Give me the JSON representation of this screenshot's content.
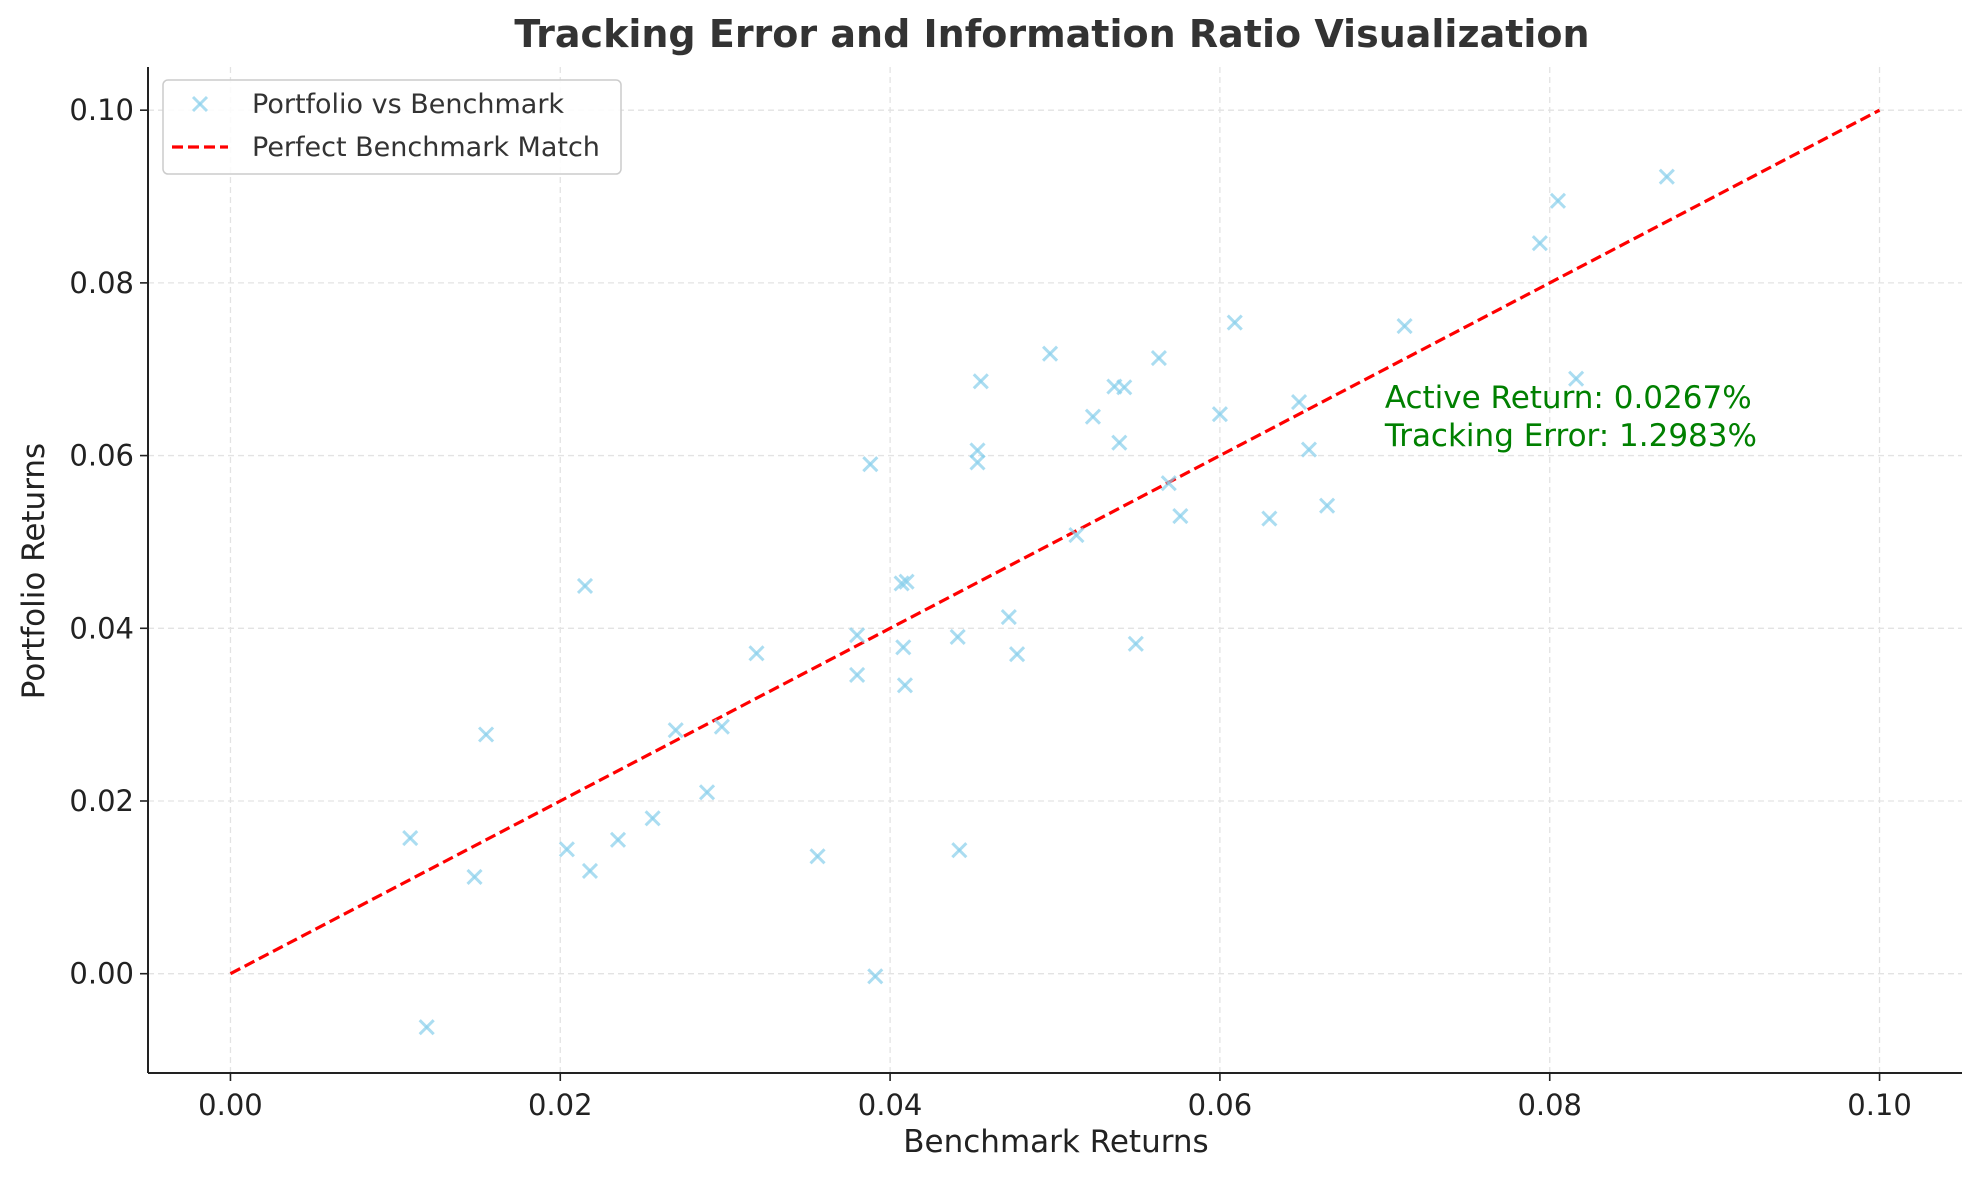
{
  "chart_data": {
    "type": "scatter",
    "title": "Tracking Error and Information Ratio Visualization",
    "xlabel": "Benchmark Returns",
    "ylabel": "Portfolio Returns",
    "xlim": [
      -0.005,
      0.105
    ],
    "ylim": [
      -0.0115,
      0.105
    ],
    "xticks": [
      0.0,
      0.02,
      0.04,
      0.06,
      0.08,
      0.1
    ],
    "yticks": [
      0.0,
      0.02,
      0.04,
      0.06,
      0.08,
      0.1
    ],
    "xtick_labels": [
      "0.00",
      "0.02",
      "0.04",
      "0.06",
      "0.08",
      "0.10"
    ],
    "ytick_labels": [
      "0.00",
      "0.02",
      "0.04",
      "0.06",
      "0.08",
      "0.10"
    ],
    "grid": true,
    "legend_position": "top-left",
    "series": [
      {
        "name": "Portfolio vs Benchmark",
        "marker": "x",
        "color": "#87CEEB",
        "points": [
          [
            0.0119,
            -0.0062
          ],
          [
            0.0109,
            0.0157
          ],
          [
            0.0148,
            0.0112
          ],
          [
            0.0155,
            0.0277
          ],
          [
            0.0204,
            0.0144
          ],
          [
            0.0215,
            0.0449
          ],
          [
            0.0218,
            0.0119
          ],
          [
            0.0235,
            0.0155
          ],
          [
            0.0256,
            0.018
          ],
          [
            0.027,
            0.0282
          ],
          [
            0.0289,
            0.021
          ],
          [
            0.0298,
            0.0286
          ],
          [
            0.0319,
            0.0371
          ],
          [
            0.0356,
            0.0136
          ],
          [
            0.038,
            0.0392
          ],
          [
            0.038,
            0.0346
          ],
          [
            0.0388,
            0.059
          ],
          [
            0.0391,
            -0.0003
          ],
          [
            0.0407,
            0.0452
          ],
          [
            0.0408,
            0.0378
          ],
          [
            0.0409,
            0.0334
          ],
          [
            0.041,
            0.0454
          ],
          [
            0.0441,
            0.039
          ],
          [
            0.0442,
            0.0143
          ],
          [
            0.0453,
            0.0606
          ],
          [
            0.0453,
            0.0592
          ],
          [
            0.0455,
            0.0686
          ],
          [
            0.0472,
            0.0413
          ],
          [
            0.0477,
            0.037
          ],
          [
            0.0497,
            0.0718
          ],
          [
            0.0513,
            0.0508
          ],
          [
            0.0523,
            0.0645
          ],
          [
            0.0536,
            0.068
          ],
          [
            0.0539,
            0.0615
          ],
          [
            0.0542,
            0.0679
          ],
          [
            0.0549,
            0.0382
          ],
          [
            0.0563,
            0.0713
          ],
          [
            0.0569,
            0.0568
          ],
          [
            0.0576,
            0.053
          ],
          [
            0.06,
            0.0648
          ],
          [
            0.0609,
            0.0754
          ],
          [
            0.063,
            0.0527
          ],
          [
            0.0648,
            0.0662
          ],
          [
            0.0654,
            0.0607
          ],
          [
            0.0665,
            0.0542
          ],
          [
            0.0712,
            0.075
          ],
          [
            0.0794,
            0.0846
          ],
          [
            0.0805,
            0.0895
          ],
          [
            0.0816,
            0.0689
          ],
          [
            0.0871,
            0.0923
          ]
        ]
      },
      {
        "name": "Perfect Benchmark Match",
        "line_style": "dashed",
        "color": "#ff0000",
        "points": [
          [
            0.0,
            0.0
          ],
          [
            0.1,
            0.1
          ]
        ]
      }
    ],
    "annotations": [
      {
        "lines": [
          "Active Return: 0.0267%",
          "Tracking Error: 1.2983%"
        ],
        "x": 0.07,
        "y": 0.0655,
        "color": "#008000"
      }
    ]
  }
}
